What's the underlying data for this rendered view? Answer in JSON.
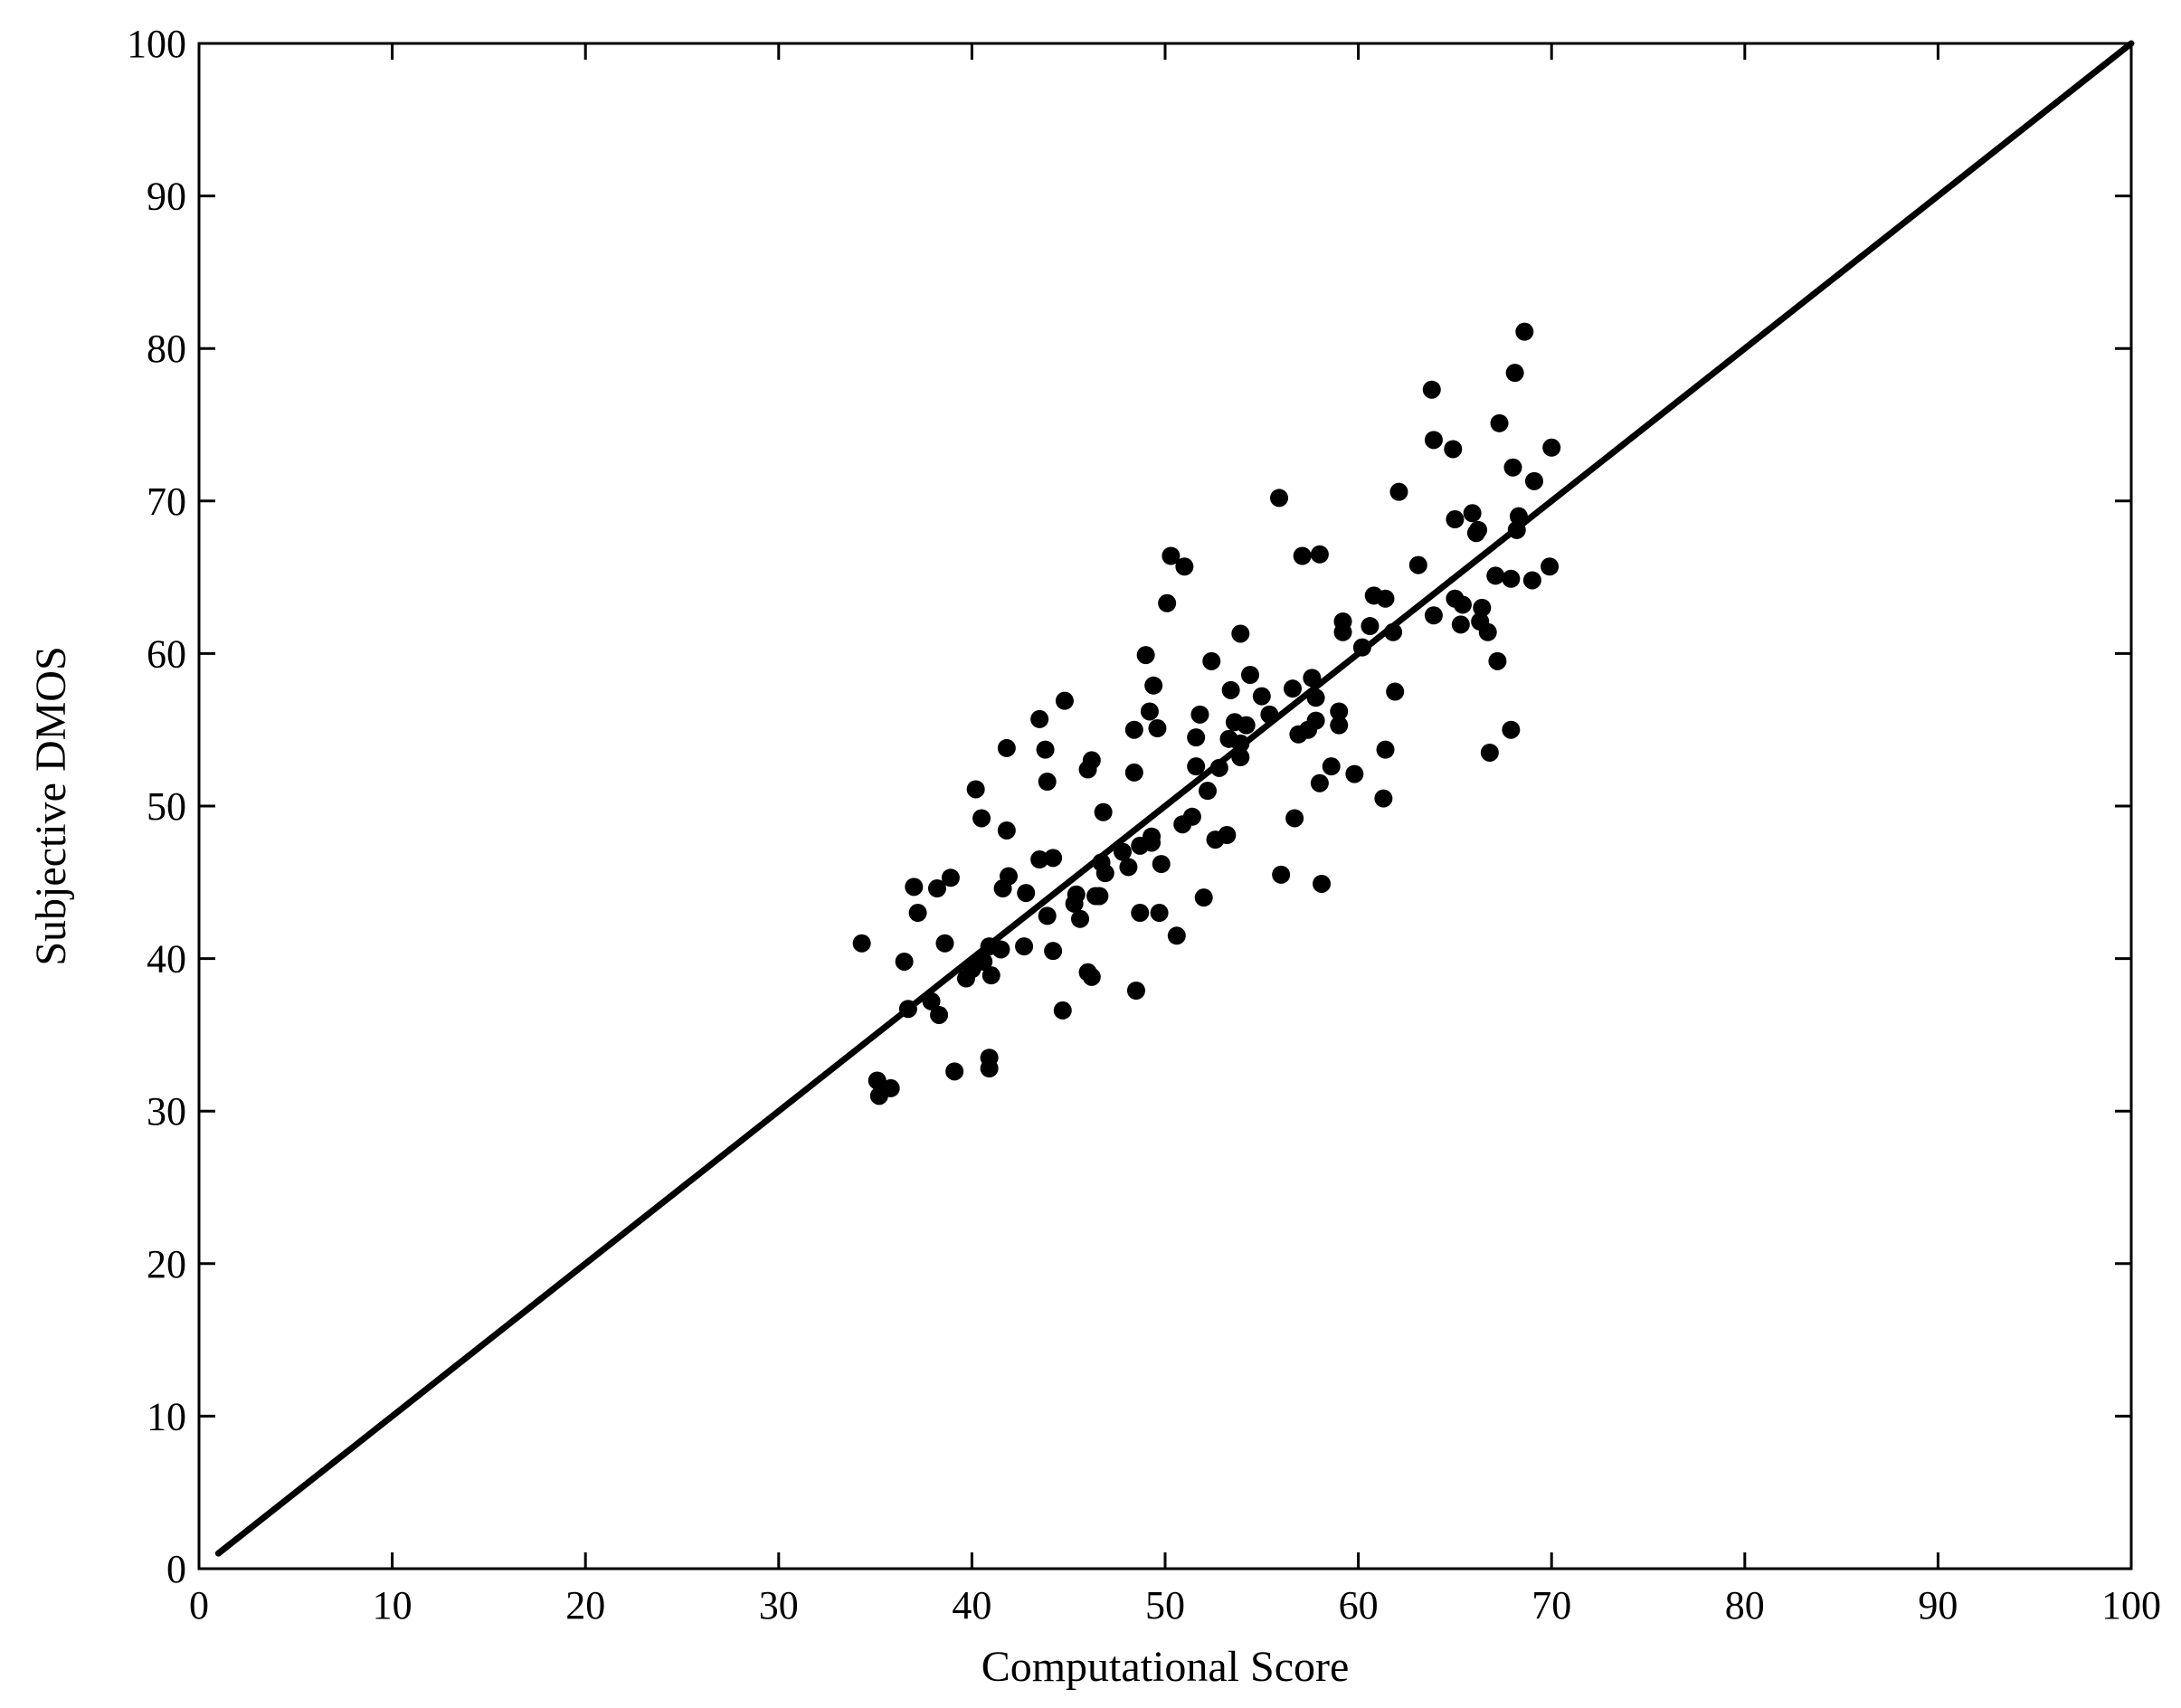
{
  "chart_data": {
    "type": "scatter",
    "title": "",
    "xlabel": "Computational Score",
    "ylabel": "Subjective DMOS",
    "xlim": [
      0,
      100
    ],
    "ylim": [
      0,
      100
    ],
    "x_ticks": [
      "0",
      "10",
      "20",
      "30",
      "40",
      "50",
      "60",
      "70",
      "80",
      "90",
      "100"
    ],
    "y_ticks": [
      "0",
      "10",
      "20",
      "30",
      "40",
      "50",
      "60",
      "70",
      "80",
      "90",
      "100"
    ],
    "grid": false,
    "legend": "none",
    "marker_color": "#000000",
    "reference_line": {
      "x": [
        1,
        100
      ],
      "y": [
        1,
        100
      ]
    },
    "points": [
      [
        34.3,
        41.0
      ],
      [
        35.1,
        32.0
      ],
      [
        35.2,
        31.0
      ],
      [
        35.8,
        31.5
      ],
      [
        36.5,
        39.8
      ],
      [
        36.7,
        36.7
      ],
      [
        37.0,
        44.7
      ],
      [
        37.2,
        43.0
      ],
      [
        37.9,
        37.2
      ],
      [
        38.2,
        44.6
      ],
      [
        38.3,
        36.3
      ],
      [
        38.6,
        41.0
      ],
      [
        38.9,
        45.3
      ],
      [
        39.1,
        32.6
      ],
      [
        39.7,
        38.7
      ],
      [
        40.0,
        39.3
      ],
      [
        40.2,
        51.1
      ],
      [
        40.5,
        49.2
      ],
      [
        40.6,
        39.8
      ],
      [
        40.9,
        40.8
      ],
      [
        40.9,
        33.5
      ],
      [
        40.9,
        32.8
      ],
      [
        41.0,
        38.9
      ],
      [
        41.5,
        40.6
      ],
      [
        41.6,
        44.6
      ],
      [
        41.8,
        53.8
      ],
      [
        41.8,
        48.4
      ],
      [
        41.9,
        45.4
      ],
      [
        42.7,
        40.8
      ],
      [
        42.8,
        44.3
      ],
      [
        43.5,
        55.7
      ],
      [
        43.5,
        46.5
      ],
      [
        43.8,
        53.7
      ],
      [
        43.9,
        51.6
      ],
      [
        43.9,
        42.8
      ],
      [
        44.2,
        46.6
      ],
      [
        44.2,
        40.5
      ],
      [
        44.7,
        36.6
      ],
      [
        44.8,
        56.9
      ],
      [
        45.3,
        43.6
      ],
      [
        45.4,
        44.2
      ],
      [
        45.6,
        42.6
      ],
      [
        46.0,
        39.1
      ],
      [
        46.0,
        52.4
      ],
      [
        46.2,
        53.0
      ],
      [
        46.2,
        38.8
      ],
      [
        46.4,
        44.1
      ],
      [
        46.6,
        44.1
      ],
      [
        46.7,
        46.3
      ],
      [
        46.8,
        49.6
      ],
      [
        46.9,
        45.6
      ],
      [
        47.8,
        47.0
      ],
      [
        48.1,
        46.0
      ],
      [
        48.4,
        55.0
      ],
      [
        48.4,
        52.2
      ],
      [
        48.5,
        37.9
      ],
      [
        48.7,
        47.4
      ],
      [
        48.7,
        43.0
      ],
      [
        49.0,
        59.9
      ],
      [
        49.2,
        56.2
      ],
      [
        49.3,
        47.6
      ],
      [
        49.3,
        48.0
      ],
      [
        49.4,
        57.9
      ],
      [
        49.6,
        55.1
      ],
      [
        49.7,
        43.0
      ],
      [
        49.8,
        46.2
      ],
      [
        50.1,
        63.3
      ],
      [
        50.3,
        66.4
      ],
      [
        50.6,
        41.5
      ],
      [
        50.9,
        48.8
      ],
      [
        51.0,
        65.7
      ],
      [
        51.4,
        49.3
      ],
      [
        51.6,
        52.6
      ],
      [
        51.6,
        54.5
      ],
      [
        51.8,
        56.0
      ],
      [
        52.0,
        44.0
      ],
      [
        52.2,
        51.0
      ],
      [
        52.4,
        59.5
      ],
      [
        52.6,
        47.8
      ],
      [
        52.8,
        52.5
      ],
      [
        53.2,
        48.1
      ],
      [
        53.3,
        54.4
      ],
      [
        53.4,
        57.6
      ],
      [
        53.6,
        55.5
      ],
      [
        53.9,
        61.3
      ],
      [
        53.9,
        54.1
      ],
      [
        53.9,
        53.2
      ],
      [
        54.2,
        55.3
      ],
      [
        54.4,
        58.6
      ],
      [
        55.0,
        57.2
      ],
      [
        55.4,
        56.0
      ],
      [
        55.9,
        70.2
      ],
      [
        56.0,
        45.5
      ],
      [
        56.6,
        57.7
      ],
      [
        56.7,
        49.2
      ],
      [
        56.9,
        54.7
      ],
      [
        57.1,
        66.4
      ],
      [
        57.4,
        55.0
      ],
      [
        57.6,
        58.4
      ],
      [
        57.8,
        57.1
      ],
      [
        57.8,
        55.6
      ],
      [
        58.0,
        66.5
      ],
      [
        58.0,
        51.5
      ],
      [
        58.1,
        44.9
      ],
      [
        58.6,
        52.6
      ],
      [
        59.0,
        56.2
      ],
      [
        59.0,
        55.3
      ],
      [
        59.2,
        62.1
      ],
      [
        59.2,
        61.4
      ],
      [
        59.8,
        52.1
      ],
      [
        60.2,
        60.4
      ],
      [
        60.6,
        61.8
      ],
      [
        60.8,
        63.8
      ],
      [
        61.3,
        50.5
      ],
      [
        61.4,
        53.7
      ],
      [
        61.4,
        63.6
      ],
      [
        61.8,
        61.4
      ],
      [
        61.9,
        57.5
      ],
      [
        62.1,
        70.6
      ],
      [
        63.1,
        65.8
      ],
      [
        63.8,
        77.3
      ],
      [
        63.9,
        62.5
      ],
      [
        63.9,
        74.0
      ],
      [
        64.9,
        73.4
      ],
      [
        65.0,
        68.8
      ],
      [
        65.0,
        63.6
      ],
      [
        65.3,
        61.9
      ],
      [
        65.4,
        63.2
      ],
      [
        65.9,
        69.2
      ],
      [
        66.1,
        67.9
      ],
      [
        66.2,
        68.1
      ],
      [
        66.3,
        62.1
      ],
      [
        66.4,
        63.0
      ],
      [
        66.7,
        61.4
      ],
      [
        66.8,
        53.5
      ],
      [
        67.1,
        65.1
      ],
      [
        67.2,
        59.5
      ],
      [
        67.3,
        75.1
      ],
      [
        67.9,
        64.9
      ],
      [
        67.9,
        55.0
      ],
      [
        68.0,
        72.2
      ],
      [
        68.1,
        78.4
      ],
      [
        68.2,
        68.1
      ],
      [
        68.3,
        69.0
      ],
      [
        68.6,
        81.1
      ],
      [
        69.0,
        64.8
      ],
      [
        69.1,
        71.3
      ],
      [
        69.9,
        65.7
      ],
      [
        70.0,
        73.5
      ]
    ]
  }
}
